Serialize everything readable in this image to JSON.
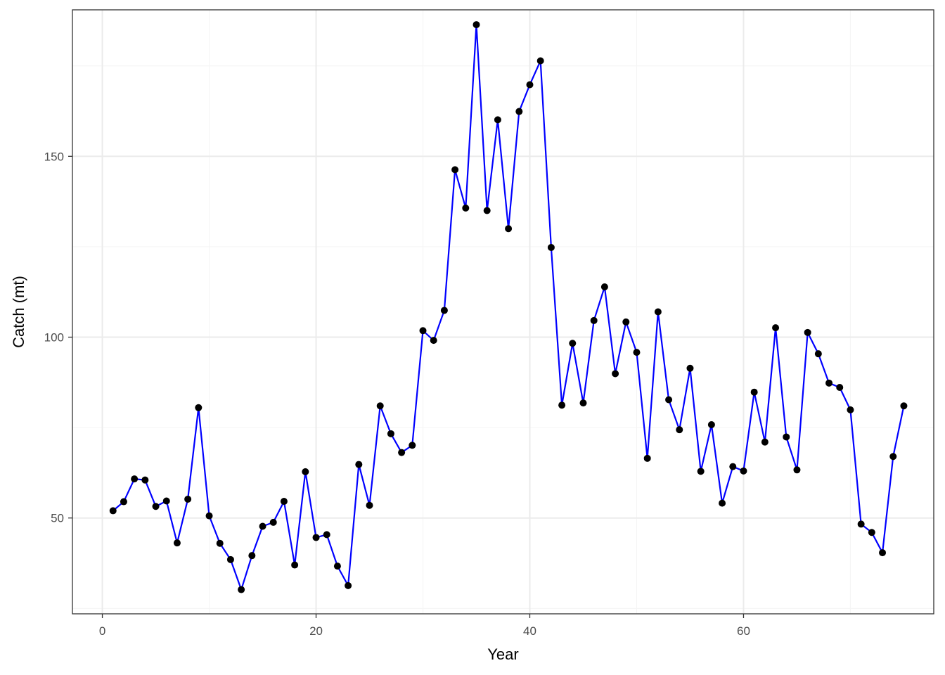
{
  "colors": {
    "line": "#0000ff",
    "point": "#000000",
    "grid_major": "#ebebeb",
    "grid_minor": "#f5f5f5",
    "panel_border": "#333333",
    "background": "#ffffff"
  },
  "chart_data": {
    "type": "line",
    "title": "",
    "xlabel": "Year",
    "ylabel": "Catch (mt)",
    "xlim": [
      -2.8,
      77.8
    ],
    "ylim": [
      23.5,
      190.5
    ],
    "x_ticks": [
      0,
      20,
      40,
      60
    ],
    "x_tick_labels": [
      "0",
      "20",
      "40",
      "60"
    ],
    "y_ticks": [
      50,
      100,
      150
    ],
    "y_tick_labels": [
      "50",
      "100",
      "150"
    ],
    "grid": true,
    "theme": "bw",
    "markers": true,
    "series": [
      {
        "x": [
          1,
          2,
          3,
          4,
          5,
          6,
          7,
          8,
          9,
          10,
          11,
          12,
          13,
          14,
          15,
          16,
          17,
          18,
          19,
          20,
          21,
          22,
          23,
          24,
          25,
          26,
          27,
          28,
          29,
          30,
          31,
          32,
          33,
          34,
          35,
          36,
          37,
          38,
          39,
          40,
          41,
          42,
          43,
          44,
          45,
          46,
          47,
          48,
          49,
          50,
          51,
          52,
          53,
          54,
          55,
          56,
          57,
          58,
          59,
          60,
          61,
          62,
          63,
          64,
          65,
          66,
          67,
          68,
          69,
          70,
          71,
          72,
          73,
          74,
          75
        ],
        "y": [
          52.0,
          54.5,
          60.8,
          60.5,
          53.2,
          54.7,
          43.1,
          55.2,
          80.5,
          50.6,
          43.0,
          38.5,
          30.2,
          39.6,
          47.7,
          48.8,
          54.6,
          37.0,
          62.8,
          44.6,
          45.4,
          36.7,
          31.3,
          64.8,
          53.5,
          81.0,
          73.3,
          68.1,
          70.1,
          101.8,
          99.1,
          107.4,
          146.3,
          135.7,
          186.4,
          135.0,
          160.1,
          130.0,
          162.4,
          169.8,
          176.4,
          124.8,
          81.2,
          98.3,
          81.8,
          104.6,
          113.9,
          89.9,
          104.2,
          95.8,
          66.5,
          107.0,
          82.7,
          74.4,
          91.4,
          62.9,
          75.8,
          54.1,
          64.2,
          63.0,
          84.8,
          71.0,
          102.6,
          72.4,
          63.3,
          101.3,
          95.4,
          87.3,
          86.1,
          79.9,
          48.3,
          46.0,
          40.4,
          67.0,
          81.0
        ]
      }
    ]
  }
}
